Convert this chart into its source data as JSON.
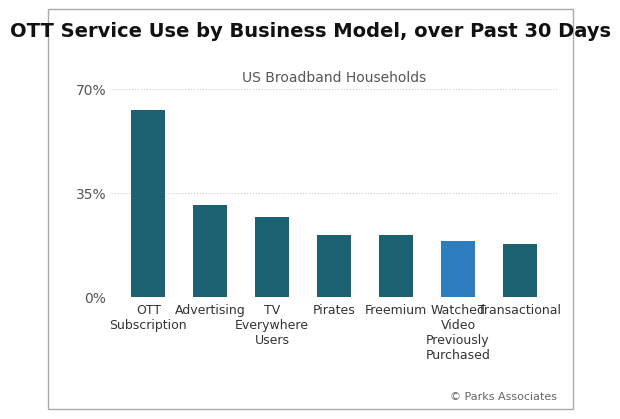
{
  "title": "OTT Service Use by Business Model, over Past 30 Days",
  "subtitle": "US Broadband Households",
  "categories": [
    "OTT\nSubscription",
    "Advertising",
    "TV\nEverywhere\nUsers",
    "Pirates",
    "Freemium",
    "Watched\nVideo\nPreviously\nPurchased",
    "Transactional"
  ],
  "values": [
    63,
    31,
    27,
    21,
    21,
    19,
    18
  ],
  "bar_colors": [
    "#1d6272",
    "#1d6272",
    "#1d6272",
    "#1d6272",
    "#1d6272",
    "#2e7ebf",
    "#1d6272"
  ],
  "ylim": [
    0,
    70
  ],
  "yticks": [
    0,
    35,
    70
  ],
  "ytick_labels": [
    "0%",
    "35%",
    "70%"
  ],
  "background_color": "#ffffff",
  "title_fontsize": 14,
  "subtitle_fontsize": 10,
  "tick_fontsize": 10,
  "xlabel_fontsize": 9,
  "footer": "© Parks Associates",
  "grid_color": "#cccccc",
  "bar_width": 0.55
}
